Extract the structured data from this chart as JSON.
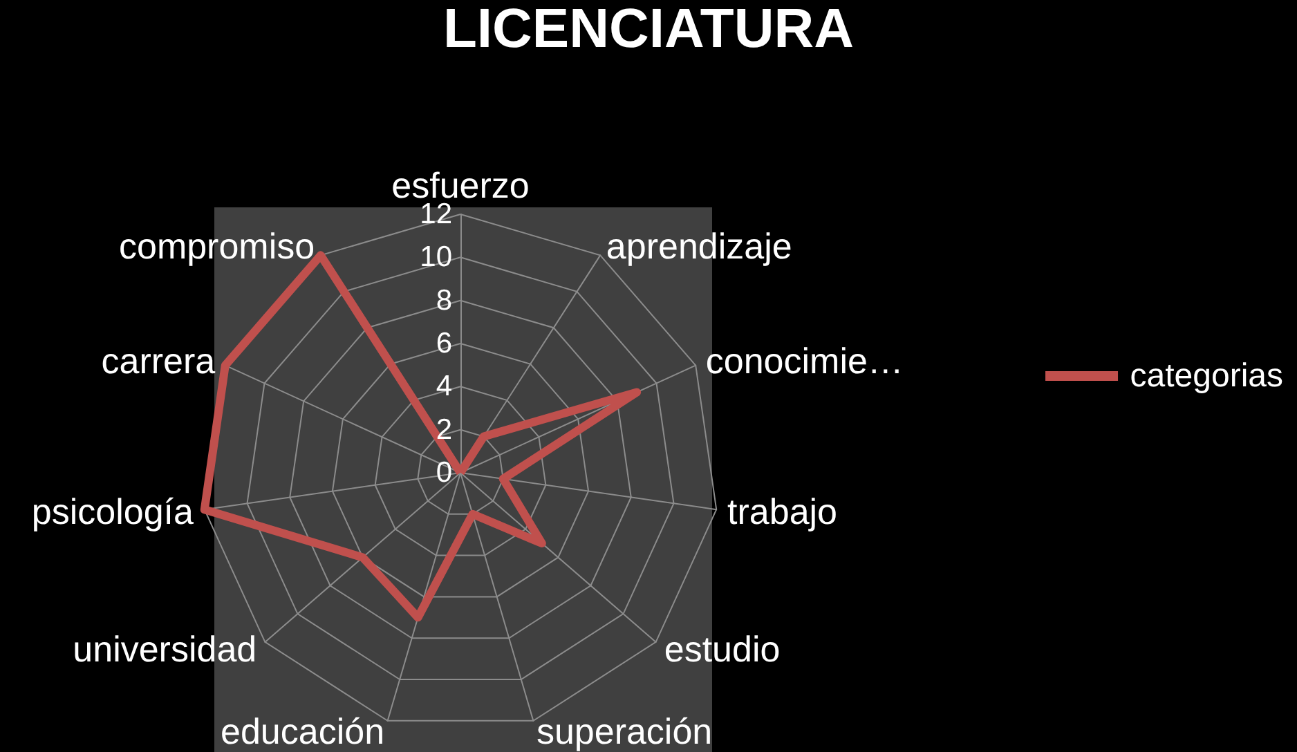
{
  "chart_data": {
    "type": "radar",
    "title": "LICENCIATURA",
    "categories": [
      "esfuerzo",
      "aprendizaje",
      "conocimie…",
      "trabajo",
      "estudio",
      "superación",
      "educación",
      "universidad",
      "psicología",
      "carrera",
      "compromiso"
    ],
    "series": [
      {
        "name": "categorias",
        "color": "#c0504d",
        "values": [
          0,
          2,
          9,
          2,
          5,
          2,
          7,
          6,
          12,
          12,
          12
        ]
      }
    ],
    "ylim": [
      0,
      12
    ],
    "yticks": [
      0,
      2,
      4,
      6,
      8,
      10,
      12
    ],
    "grid": true,
    "legend": "right",
    "marker": "none"
  }
}
